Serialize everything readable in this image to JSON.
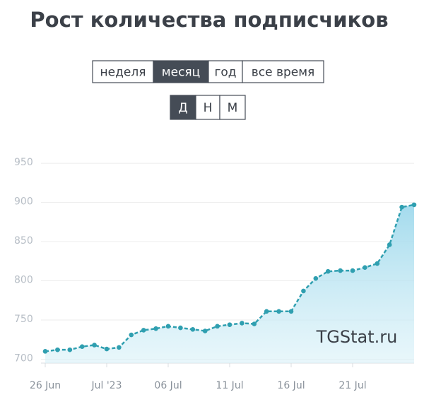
{
  "chart_data": {
    "type": "line",
    "title": "Рост количества подписчиков",
    "categories": [
      "26 Jun",
      null,
      null,
      null,
      null,
      "Jul '23",
      null,
      null,
      null,
      null,
      "06 Jul",
      null,
      null,
      null,
      null,
      "11 Jul",
      null,
      null,
      null,
      null,
      "16 Jul",
      null,
      null,
      null,
      null,
      "21 Jul",
      null,
      null,
      null,
      null,
      null
    ],
    "values": [
      710,
      712,
      712,
      716,
      718,
      713,
      715,
      731,
      737,
      739,
      742,
      740,
      738,
      736,
      742,
      744,
      746,
      745,
      761,
      761,
      761,
      787,
      803,
      812,
      813,
      813,
      817,
      822,
      846,
      894,
      897
    ],
    "color": "#2f9fb0",
    "ylim": [
      695,
      960
    ],
    "yticks": [
      700,
      750,
      800,
      850,
      900,
      950
    ],
    "grid": true
  },
  "period_buttons": [
    "неделя",
    "месяц",
    "год",
    "все время"
  ],
  "period_selected": 1,
  "group_buttons": [
    "Д",
    "Н",
    "М"
  ],
  "group_selected": 0,
  "watermark": "TGStat.ru"
}
